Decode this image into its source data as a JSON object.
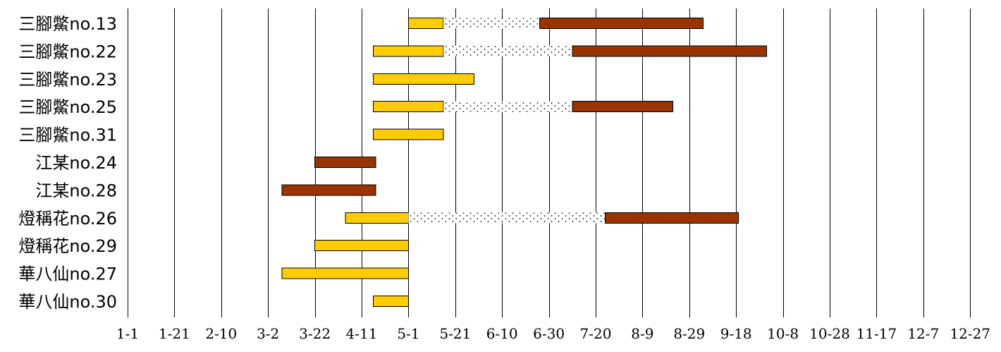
{
  "chart_data": {
    "type": "gantt",
    "title": "",
    "xlabel": "",
    "ylabel": "",
    "x_axis": {
      "unit": "date (month-day)",
      "ticks": [
        "1-1",
        "1-21",
        "2-10",
        "3-2",
        "3-22",
        "4-11",
        "5-1",
        "5-21",
        "6-10",
        "6-30",
        "7-20",
        "8-9",
        "8-29",
        "9-18",
        "10-8",
        "10-28",
        "11-17",
        "12-7",
        "12-27"
      ],
      "range": [
        "1-1",
        "12-27"
      ],
      "grid": true
    },
    "colors": {
      "phase_a": "#FFCC00",
      "phase_b": "#993300",
      "gap_dots": "#000000"
    },
    "rows": [
      {
        "label": "三腳鱉no.13",
        "segments": [
          {
            "phase": "phase_a",
            "start": "5-1",
            "end": "5-16"
          },
          {
            "phase": "gap",
            "start": "5-16",
            "end": "6-26"
          },
          {
            "phase": "phase_b",
            "start": "6-26",
            "end": "9-4"
          }
        ]
      },
      {
        "label": "三腳鱉no.22",
        "segments": [
          {
            "phase": "phase_a",
            "start": "4-16",
            "end": "5-16"
          },
          {
            "phase": "gap",
            "start": "5-16",
            "end": "7-10"
          },
          {
            "phase": "phase_b",
            "start": "7-10",
            "end": "10-1"
          }
        ]
      },
      {
        "label": "三腳鱉no.23",
        "segments": [
          {
            "phase": "phase_a",
            "start": "4-16",
            "end": "5-29"
          }
        ]
      },
      {
        "label": "三腳鱉no.25",
        "segments": [
          {
            "phase": "phase_a",
            "start": "4-16",
            "end": "5-16"
          },
          {
            "phase": "gap",
            "start": "5-16",
            "end": "7-10"
          },
          {
            "phase": "phase_b",
            "start": "7-10",
            "end": "8-22"
          }
        ]
      },
      {
        "label": "三腳鱉no.31",
        "segments": [
          {
            "phase": "phase_a",
            "start": "4-16",
            "end": "5-16"
          }
        ]
      },
      {
        "label": "江某no.24",
        "segments": [
          {
            "phase": "phase_b",
            "start": "3-22",
            "end": "4-17"
          }
        ]
      },
      {
        "label": "江某no.28",
        "segments": [
          {
            "phase": "phase_b",
            "start": "3-8",
            "end": "4-17"
          }
        ]
      },
      {
        "label": "燈稱花no.26",
        "segments": [
          {
            "phase": "phase_a",
            "start": "4-4",
            "end": "5-1"
          },
          {
            "phase": "gap",
            "start": "5-1",
            "end": "7-24"
          },
          {
            "phase": "phase_b",
            "start": "7-24",
            "end": "9-19"
          }
        ]
      },
      {
        "label": "燈稱花no.29",
        "segments": [
          {
            "phase": "phase_a",
            "start": "3-22",
            "end": "5-1"
          }
        ]
      },
      {
        "label": "華八仙no.27",
        "segments": [
          {
            "phase": "phase_a",
            "start": "3-8",
            "end": "5-1"
          }
        ]
      },
      {
        "label": "華八仙no.30",
        "segments": [
          {
            "phase": "phase_a",
            "start": "4-16",
            "end": "5-1"
          }
        ]
      }
    ]
  }
}
